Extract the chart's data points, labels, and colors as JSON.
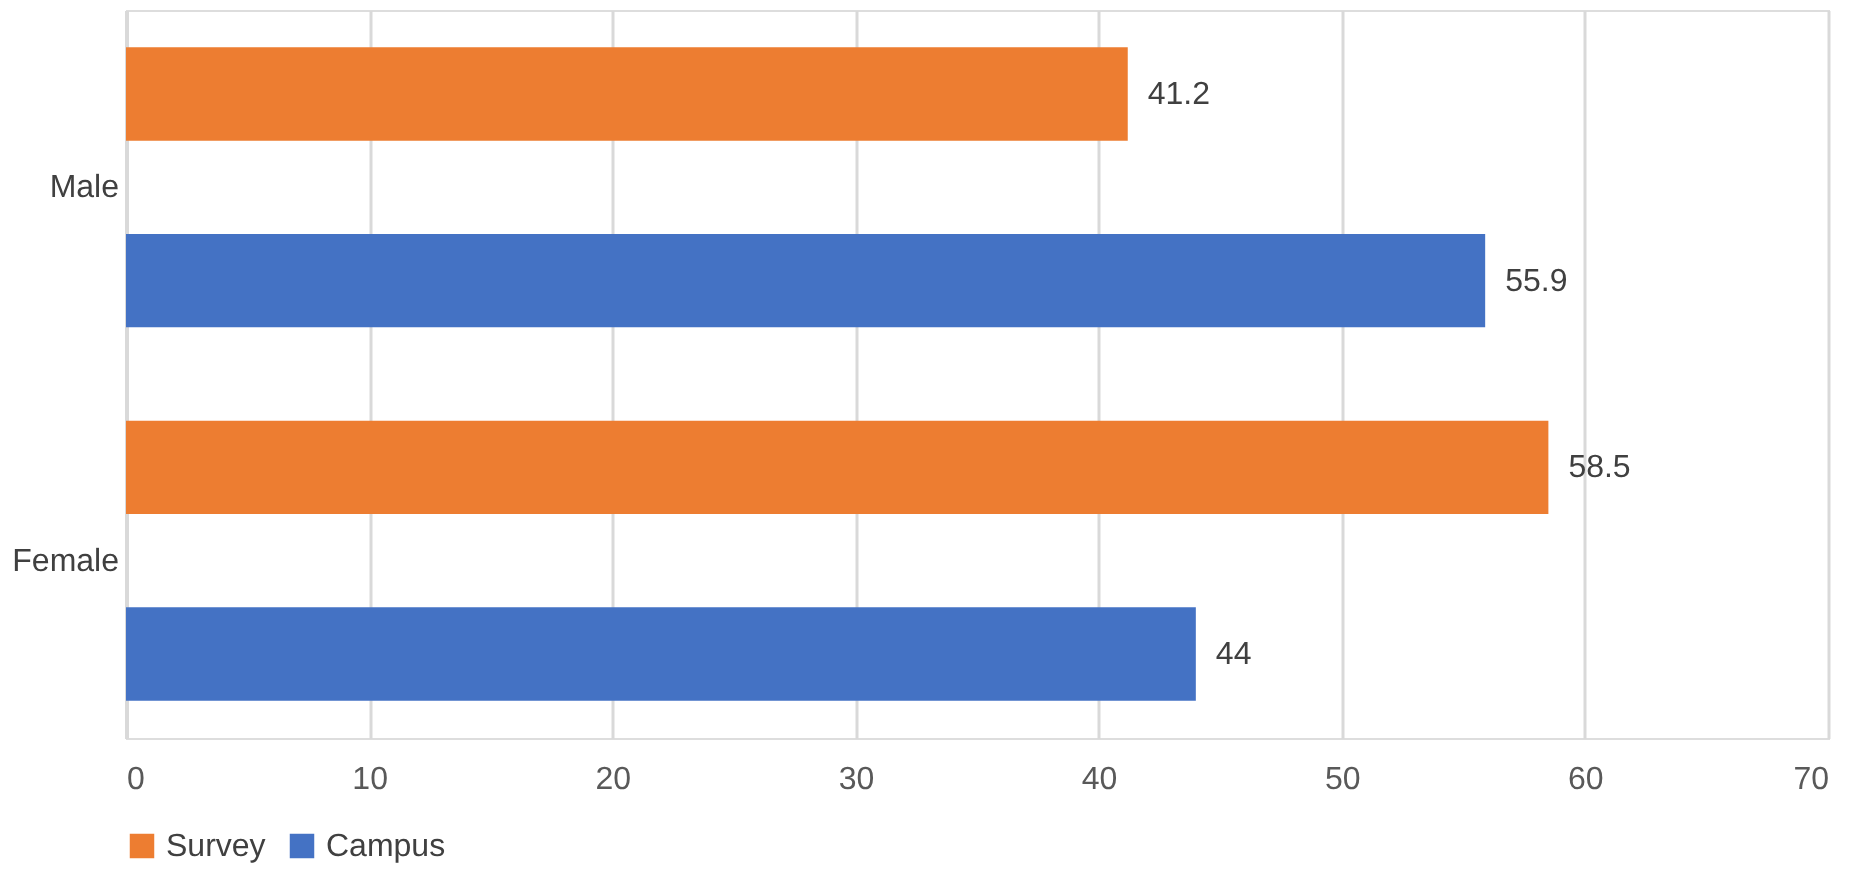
{
  "chart_data": {
    "type": "bar",
    "orientation": "horizontal",
    "categories": [
      "Male",
      "Female"
    ],
    "series": [
      {
        "name": "Survey",
        "color": "#ed7d31",
        "values": [
          41.2,
          58.5
        ]
      },
      {
        "name": "Campus",
        "color": "#4472c4",
        "values": [
          55.9,
          44
        ]
      }
    ],
    "xlim": [
      0,
      70
    ],
    "xticks": [
      0,
      10,
      20,
      30,
      40,
      50,
      60,
      70
    ],
    "grid": "x",
    "legend": "bottom",
    "data_labels": true
  }
}
